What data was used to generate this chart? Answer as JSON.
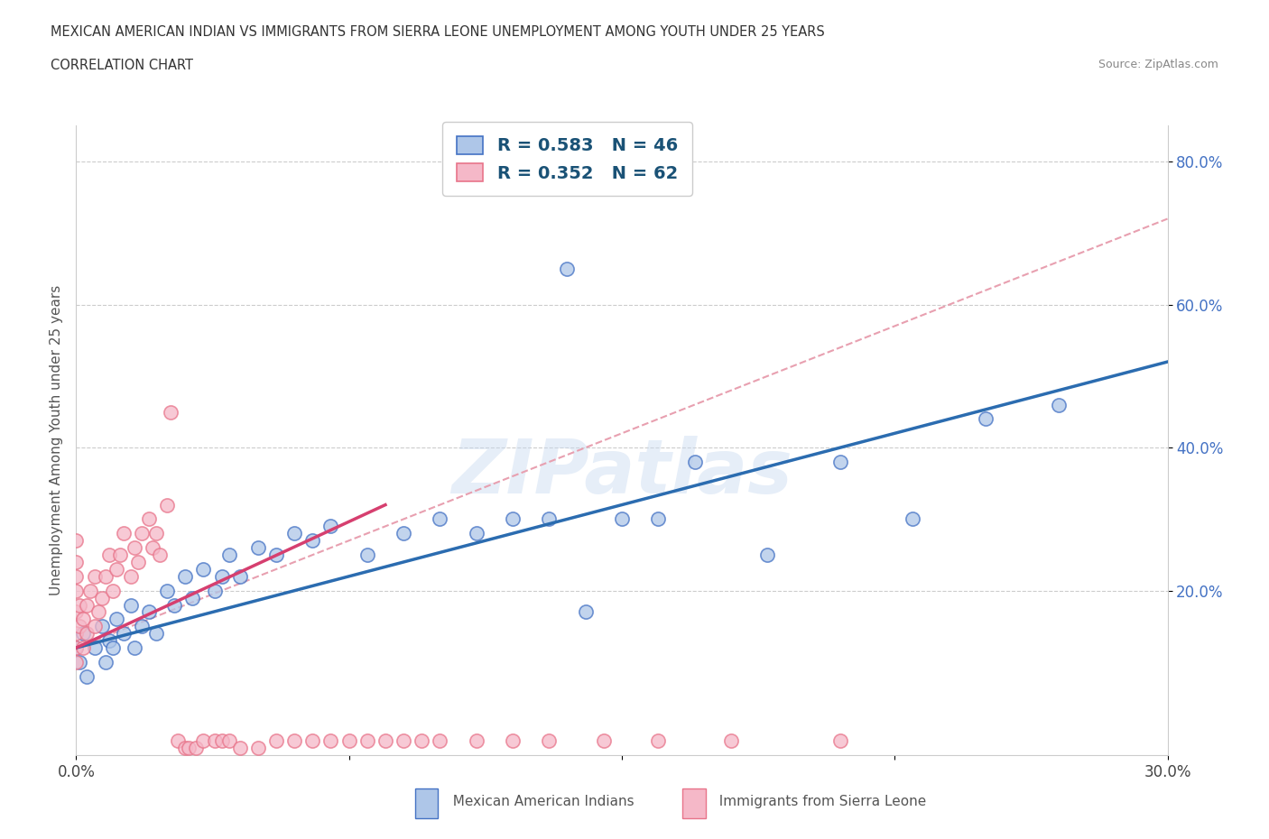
{
  "title_line1": "MEXICAN AMERICAN INDIAN VS IMMIGRANTS FROM SIERRA LEONE UNEMPLOYMENT AMONG YOUTH UNDER 25 YEARS",
  "title_line2": "CORRELATION CHART",
  "source": "Source: ZipAtlas.com",
  "ylabel": "Unemployment Among Youth under 25 years",
  "xmin": 0.0,
  "xmax": 0.3,
  "ymin": -0.03,
  "ymax": 0.85,
  "ytick_values": [
    0.2,
    0.4,
    0.6,
    0.8
  ],
  "ytick_labels": [
    "20.0%",
    "40.0%",
    "60.0%",
    "80.0%"
  ],
  "xtick_values": [
    0.0,
    0.075,
    0.15,
    0.225,
    0.3
  ],
  "xtick_left_label": "0.0%",
  "xtick_right_label": "30.0%",
  "blue_R": 0.583,
  "blue_N": 46,
  "pink_R": 0.352,
  "pink_N": 62,
  "blue_fill_color": "#aec6e8",
  "pink_fill_color": "#f5b8c8",
  "blue_edge_color": "#4472c4",
  "pink_edge_color": "#e8748a",
  "blue_line_color": "#2b6cb0",
  "pink_line_color": "#d63f6f",
  "pink_dash_color": "#e8a0b0",
  "legend_label_blue": "Mexican American Indians",
  "legend_label_pink": "Immigrants from Sierra Leone",
  "watermark": "ZIPatlas",
  "blue_scatter_x": [
    0.0,
    0.001,
    0.002,
    0.003,
    0.005,
    0.007,
    0.008,
    0.009,
    0.01,
    0.011,
    0.013,
    0.015,
    0.016,
    0.018,
    0.02,
    0.022,
    0.025,
    0.027,
    0.03,
    0.032,
    0.035,
    0.038,
    0.04,
    0.042,
    0.045,
    0.05,
    0.055,
    0.06,
    0.065,
    0.07,
    0.08,
    0.09,
    0.1,
    0.11,
    0.12,
    0.13,
    0.14,
    0.15,
    0.16,
    0.17,
    0.19,
    0.21,
    0.23,
    0.25,
    0.27,
    0.135
  ],
  "blue_scatter_y": [
    0.12,
    0.1,
    0.14,
    0.08,
    0.12,
    0.15,
    0.1,
    0.13,
    0.12,
    0.16,
    0.14,
    0.18,
    0.12,
    0.15,
    0.17,
    0.14,
    0.2,
    0.18,
    0.22,
    0.19,
    0.23,
    0.2,
    0.22,
    0.25,
    0.22,
    0.26,
    0.25,
    0.28,
    0.27,
    0.29,
    0.25,
    0.28,
    0.3,
    0.28,
    0.3,
    0.3,
    0.17,
    0.3,
    0.3,
    0.38,
    0.25,
    0.38,
    0.3,
    0.44,
    0.46,
    0.65
  ],
  "pink_scatter_x": [
    0.0,
    0.0,
    0.0,
    0.0,
    0.0,
    0.0,
    0.0,
    0.0,
    0.001,
    0.001,
    0.002,
    0.002,
    0.003,
    0.003,
    0.004,
    0.005,
    0.005,
    0.006,
    0.007,
    0.008,
    0.009,
    0.01,
    0.011,
    0.012,
    0.013,
    0.015,
    0.016,
    0.017,
    0.018,
    0.02,
    0.021,
    0.022,
    0.023,
    0.025,
    0.026,
    0.028,
    0.03,
    0.031,
    0.033,
    0.035,
    0.038,
    0.04,
    0.042,
    0.045,
    0.05,
    0.055,
    0.06,
    0.065,
    0.07,
    0.075,
    0.08,
    0.085,
    0.09,
    0.095,
    0.1,
    0.11,
    0.12,
    0.13,
    0.145,
    0.16,
    0.18,
    0.21
  ],
  "pink_scatter_y": [
    0.14,
    0.17,
    0.2,
    0.22,
    0.24,
    0.27,
    0.1,
    0.12,
    0.15,
    0.18,
    0.12,
    0.16,
    0.14,
    0.18,
    0.2,
    0.15,
    0.22,
    0.17,
    0.19,
    0.22,
    0.25,
    0.2,
    0.23,
    0.25,
    0.28,
    0.22,
    0.26,
    0.24,
    0.28,
    0.3,
    0.26,
    0.28,
    0.25,
    0.32,
    0.45,
    -0.01,
    -0.02,
    -0.02,
    -0.02,
    -0.01,
    -0.01,
    -0.01,
    -0.01,
    -0.02,
    -0.02,
    -0.01,
    -0.01,
    -0.01,
    -0.01,
    -0.01,
    -0.01,
    -0.01,
    -0.01,
    -0.01,
    -0.01,
    -0.01,
    -0.01,
    -0.01,
    -0.01,
    -0.01,
    -0.01,
    -0.01
  ],
  "diag_line_x": [
    0.0,
    0.3
  ],
  "diag_line_y": [
    0.12,
    0.72
  ],
  "blue_fit_x": [
    0.0,
    0.3
  ],
  "blue_fit_y": [
    0.12,
    0.52
  ],
  "pink_fit_x": [
    0.0,
    0.085
  ],
  "pink_fit_y": [
    0.12,
    0.32
  ]
}
